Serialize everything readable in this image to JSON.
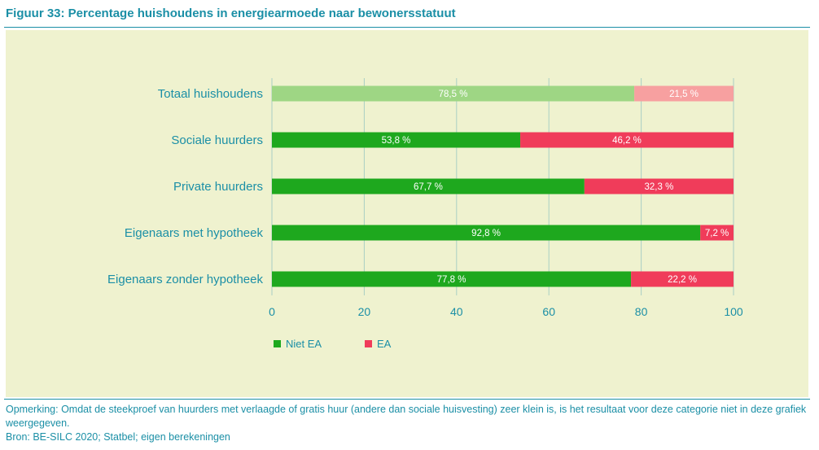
{
  "title": "Figuur 33: Percentage huishoudens in energiearmoede naar bewonersstatuut",
  "footnote": {
    "remark": "Opmerking: Omdat de steekproef van huurders met verlaagde of gratis huur (andere dan sociale huisvesting) zeer klein is, is het resultaat voor deze categorie niet in deze grafiek weergegeven.",
    "source": "Bron: BE-SILC 2020; Statbel; eigen berekeningen"
  },
  "colors": {
    "text": "#1b8fa6",
    "niet_ea": "#1ea81e",
    "ea": "#f03c5a",
    "niet_ea_light": "#9ed684",
    "ea_light": "#f7a0a0",
    "grid": "#a9cfc4",
    "panel": "#eff2cf"
  },
  "chart_data": {
    "type": "bar",
    "orientation": "horizontal",
    "stacked": true,
    "categories": [
      "Totaal huishoudens",
      "Sociale huurders",
      "Private huurders",
      "Eigenaars met hypotheek",
      "Eigenaars zonder hypotheek"
    ],
    "series": [
      {
        "name": "Niet EA",
        "values": [
          78.5,
          53.8,
          67.7,
          92.8,
          77.8
        ],
        "labels": [
          "78,5 %",
          "53,8 %",
          "67,7 %",
          "92,8 %",
          "77,8 %"
        ]
      },
      {
        "name": "EA",
        "values": [
          21.5,
          46.2,
          32.3,
          7.2,
          22.2
        ],
        "labels": [
          "21,5 %",
          "46,2 %",
          "32,3 %",
          "7,2 %",
          "22,2 %"
        ]
      }
    ],
    "highlight_first_category_lighter": true,
    "xlim": [
      0,
      100
    ],
    "xticks": [
      0,
      20,
      40,
      60,
      80,
      100
    ],
    "xtick_labels": [
      "0",
      "20",
      "40",
      "60",
      "80",
      "100"
    ],
    "grid": "vertical",
    "legend_position": "bottom-left",
    "xlabel": "",
    "ylabel": ""
  }
}
